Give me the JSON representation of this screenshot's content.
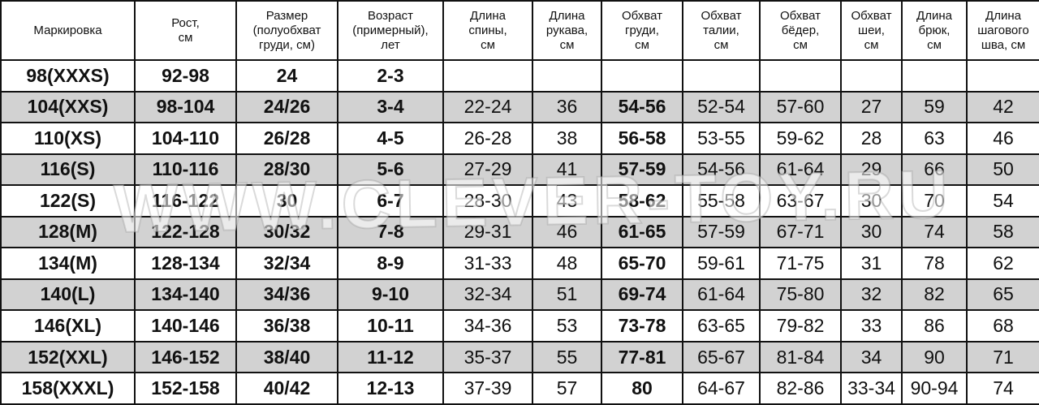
{
  "watermark": "WWW.CLEVER-TOY.RU",
  "table": {
    "header": [
      [
        "Маркировка"
      ],
      [
        "Рост,",
        "см"
      ],
      [
        "Размер",
        "(полуобхват",
        "груди, см)"
      ],
      [
        "Возраст",
        "(примерный),",
        "лет"
      ],
      [
        "Длина",
        "спины,",
        "см"
      ],
      [
        "Длина",
        "рукава,",
        "см"
      ],
      [
        "Обхват",
        "груди,",
        "см"
      ],
      [
        "Обхват",
        "талии,",
        "см"
      ],
      [
        "Обхват",
        "бёдер,",
        "см"
      ],
      [
        "Обхват",
        "шеи,",
        "см"
      ],
      [
        "Длина",
        "брюк,",
        "см"
      ],
      [
        "Длина",
        "шагового",
        "шва, см"
      ]
    ],
    "rows": [
      [
        "98(XXXS)",
        "92-98",
        "24",
        "2-3"
      ],
      [
        "104(XXS)",
        "98-104",
        "24/26",
        "3-4",
        "22-24",
        "36",
        "54-56",
        "52-54",
        "57-60",
        "27",
        "59",
        "42"
      ],
      [
        "110(XS)",
        "104-110",
        "26/28",
        "4-5",
        "26-28",
        "38",
        "56-58",
        "53-55",
        "59-62",
        "28",
        "63",
        "46"
      ],
      [
        "116(S)",
        "110-116",
        "28/30",
        "5-6",
        "27-29",
        "41",
        "57-59",
        "54-56",
        "61-64",
        "29",
        "66",
        "50"
      ],
      [
        "122(S)",
        "116-122",
        "30",
        "6-7",
        "28-30",
        "43",
        "58-62",
        "55-58",
        "63-67",
        "30",
        "70",
        "54"
      ],
      [
        "128(M)",
        "122-128",
        "30/32",
        "7-8",
        "29-31",
        "46",
        "61-65",
        "57-59",
        "67-71",
        "30",
        "74",
        "58"
      ],
      [
        "134(M)",
        "128-134",
        "32/34",
        "8-9",
        "31-33",
        "48",
        "65-70",
        "59-61",
        "71-75",
        "31",
        "78",
        "62"
      ],
      [
        "140(L)",
        "134-140",
        "34/36",
        "9-10",
        "32-34",
        "51",
        "69-74",
        "61-64",
        "75-80",
        "32",
        "82",
        "65"
      ],
      [
        "146(XL)",
        "140-146",
        "36/38",
        "10-11",
        "34-36",
        "53",
        "73-78",
        "63-65",
        "79-82",
        "33",
        "86",
        "68"
      ],
      [
        "152(XXL)",
        "146-152",
        "38/40",
        "11-12",
        "35-37",
        "55",
        "77-81",
        "65-67",
        "81-84",
        "34",
        "90",
        "71"
      ],
      [
        "158(XXXL)",
        "152-158",
        "40/42",
        "12-13",
        "37-39",
        "57",
        "80",
        "64-67",
        "82-86",
        "33-34",
        "90-94",
        "74"
      ]
    ]
  }
}
